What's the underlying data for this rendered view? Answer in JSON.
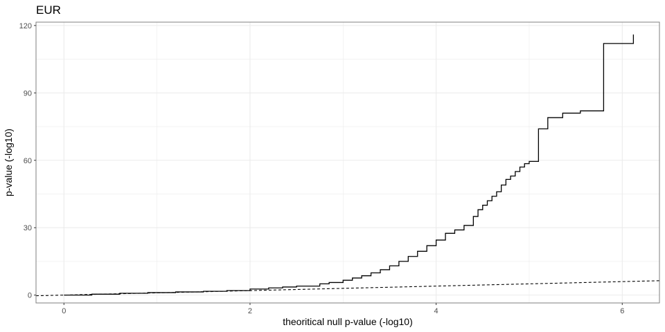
{
  "chart_data": {
    "type": "line",
    "title": "EUR",
    "xlabel": "theoritical null p-value (-log10)",
    "ylabel": "p-value (-log10)",
    "xlim": [
      -0.3,
      6.4
    ],
    "ylim": [
      -3.5,
      121.5
    ],
    "x_ticks": [
      0,
      2,
      4,
      6
    ],
    "y_ticks": [
      0,
      30,
      60,
      90,
      120
    ],
    "x_tick_labels": [
      "0",
      "2",
      "4",
      "6"
    ],
    "y_tick_labels": [
      "0",
      "30",
      "60",
      "90",
      "120"
    ],
    "grid": true,
    "legend": "none",
    "colors": {
      "line": "#000000",
      "grid": "#ebebeb",
      "panel_border": "#7f7f7f"
    },
    "series": [
      {
        "style": "step",
        "x": [
          0,
          0.3,
          0.6,
          0.9,
          1.2,
          1.5,
          1.75,
          2.0,
          2.2,
          2.35,
          2.5,
          2.75,
          2.85,
          3.0,
          3.1,
          3.2,
          3.3,
          3.4,
          3.5,
          3.6,
          3.7,
          3.8,
          3.9,
          4.0,
          4.1,
          4.2,
          4.3,
          4.4,
          4.45,
          4.5,
          4.55,
          4.6,
          4.65,
          4.7,
          4.75,
          4.8,
          4.85,
          4.9,
          4.95,
          5.0,
          5.1,
          5.2,
          5.28,
          5.36,
          5.55,
          5.8,
          6.12
        ],
        "y": [
          0,
          0.4,
          0.8,
          1.1,
          1.4,
          1.7,
          2.0,
          2.7,
          3.2,
          3.6,
          4.0,
          5.0,
          5.6,
          6.6,
          7.6,
          8.6,
          9.9,
          11.3,
          13.0,
          15.0,
          17.2,
          19.5,
          22.0,
          24.5,
          27.5,
          29.0,
          31.0,
          35.0,
          38.0,
          40.0,
          42.0,
          44.0,
          46.0,
          49.0,
          51.5,
          53.0,
          55.0,
          57.0,
          58.5,
          59.5,
          74.0,
          79.0,
          79.0,
          81.0,
          82.0,
          112.0,
          116.0
        ]
      },
      {
        "style": "dashed",
        "x": [
          -0.3,
          6.4
        ],
        "y": [
          -0.3,
          6.4
        ]
      }
    ]
  }
}
